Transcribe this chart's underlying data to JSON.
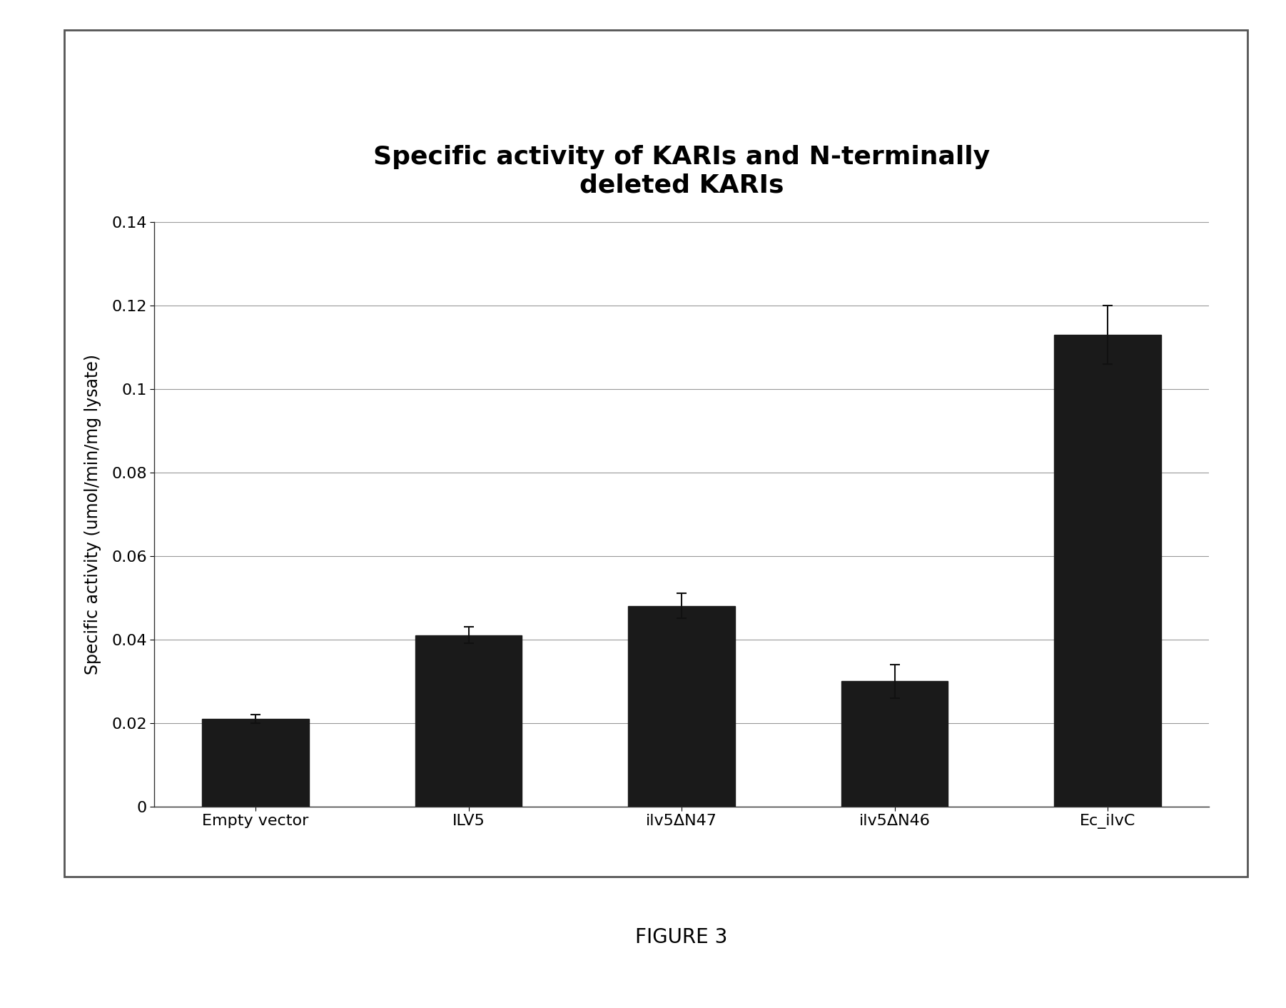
{
  "categories": [
    "Empty vector",
    "ILV5",
    "ilv5ΔN47",
    "ilv5ΔN46",
    "Ec_ilvC"
  ],
  "values": [
    0.021,
    0.041,
    0.048,
    0.03,
    0.113
  ],
  "errors": [
    0.001,
    0.002,
    0.003,
    0.004,
    0.007
  ],
  "bar_color": "#1a1a1a",
  "bar_width": 0.5,
  "title_line1": "Specific activity of KARIs and N-terminally",
  "title_line2": "deleted KARIs",
  "ylabel": "Specific activity (umol/min/mg lysate)",
  "figure_label": "FIGURE 3",
  "ylim": [
    0,
    0.14
  ],
  "yticks": [
    0,
    0.02,
    0.04,
    0.06,
    0.08,
    0.1,
    0.12,
    0.14
  ],
  "background_color": "#ffffff",
  "plot_background": "#ffffff",
  "grid_color": "#999999",
  "title_fontsize": 26,
  "label_fontsize": 17,
  "tick_fontsize": 16,
  "figure_label_fontsize": 20,
  "border_color": "#555555"
}
